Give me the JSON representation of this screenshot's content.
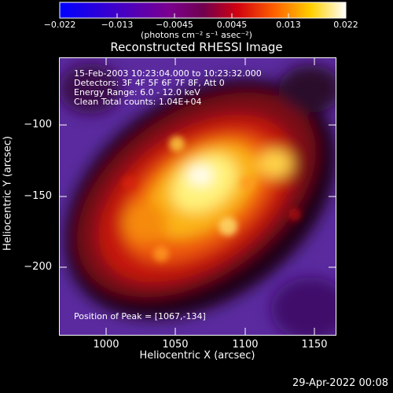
{
  "colorbar": {
    "ticks": [
      "−0.022",
      "−0.013",
      "−0.0045",
      "0.0045",
      "0.013",
      "0.022"
    ],
    "units": "(photons cm⁻² s⁻¹ asec⁻²)"
  },
  "title": "Reconstructed RHESSI Image",
  "info_lines": [
    "15-Feb-2003 10:23:04.000 to 10:23:32.000",
    "Detectors: 3F 4F 5F 6F 7F 8F, Att 0",
    "Energy Range: 6.0 - 12.0 keV",
    "Clean     Total counts: 1.04E+04"
  ],
  "peak_text": "Position of Peak = [1067,-134]",
  "x_axis": {
    "label": "Heliocentric X (arcsec)",
    "ticks": [
      "1000",
      "1050",
      "1100",
      "1150"
    ]
  },
  "y_axis": {
    "label": "Heliocentric Y (arcsec)",
    "ticks": [
      "−100",
      "−150",
      "−200"
    ]
  },
  "footer_date": "29-Apr-2022 00:08"
}
